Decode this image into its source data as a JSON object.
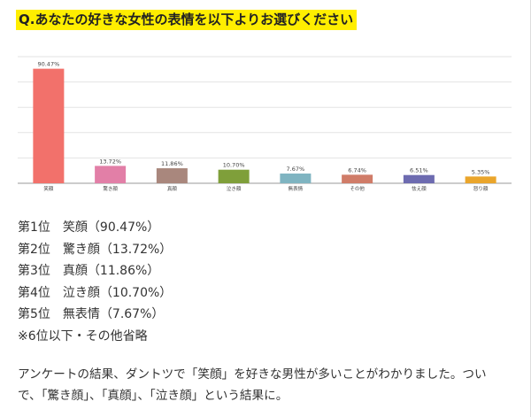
{
  "question": "Q.あなたの好きな女性の表情を以下よりお選びください",
  "chart_data": {
    "type": "bar",
    "title": "",
    "xlabel": "",
    "ylabel": "",
    "ylim": [
      0,
      100
    ],
    "grid": true,
    "categories": [
      "笑顔",
      "驚き顔",
      "真顔",
      "泣き顔",
      "無表情",
      "その他",
      "怯え顔",
      "怒り顔"
    ],
    "values": [
      90.47,
      13.72,
      11.86,
      10.7,
      7.67,
      6.74,
      6.51,
      5.35
    ],
    "value_labels": [
      "90.47%",
      "13.72%",
      "11.86%",
      "10.70%",
      "7.67%",
      "6.74%",
      "6.51%",
      "5.35%"
    ],
    "colors": [
      "#f2716b",
      "#e27fa7",
      "#a9877d",
      "#7f9f3a",
      "#7fb4c1",
      "#d07c68",
      "#6d6bb0",
      "#eaa52b"
    ]
  },
  "ranking": [
    {
      "rank": "第1位",
      "text": "笑顔（90.47%）"
    },
    {
      "rank": "第2位",
      "text": "驚き顔（13.72%）"
    },
    {
      "rank": "第3位",
      "text": "真顔（11.86%）"
    },
    {
      "rank": "第4位",
      "text": "泣き顔（10.70%）"
    },
    {
      "rank": "第5位",
      "text": "無表情（7.67%）"
    }
  ],
  "ranking_note": "※6位以下・その他省略",
  "conclusion": {
    "line1": "アンケートの結果、ダントツで「笑顔」を好きな男性が多いことがわかりました。つい",
    "line2": "で、「驚き顔」、「真顔」、「泣き顔」という結果に。"
  }
}
